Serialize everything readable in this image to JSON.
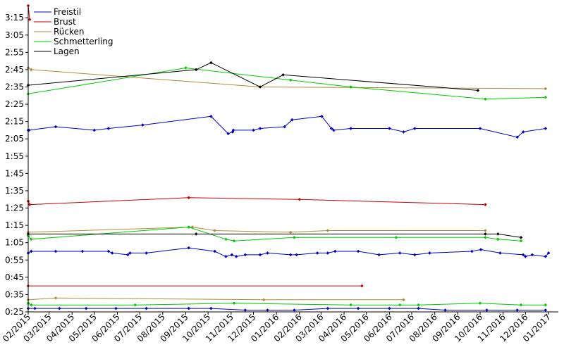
{
  "chart_data": {
    "type": "line",
    "title": "",
    "xlabel": "",
    "ylabel": "",
    "grid": false,
    "legend_position": "top-left",
    "x_ticks": [
      "02/2015",
      "03/2015",
      "04/2015",
      "05/2015",
      "06/2015",
      "07/2015",
      "08/2015",
      "09/2015",
      "10/2015",
      "11/2015",
      "12/2015",
      "01/2016",
      "02/2016",
      "03/2016",
      "04/2016",
      "05/2016",
      "06/2016",
      "07/2016",
      "08/2016",
      "09/2016",
      "10/2016",
      "11/2016",
      "12/2016",
      "01/2017"
    ],
    "xlim": [
      "2015-02-01",
      "2017-01-01"
    ],
    "y_ticks": [
      "0:25",
      "0:35",
      "0:45",
      "0:55",
      "1:05",
      "1:15",
      "1:25",
      "1:35",
      "1:45",
      "1:55",
      "2:05",
      "2:15",
      "2:25",
      "2:35",
      "2:45",
      "2:55",
      "3:05",
      "3:15"
    ],
    "ylim": [
      "0:25",
      "3:22"
    ],
    "series": [
      {
        "name": "Freistil",
        "color": "#0000cc",
        "lines": [
          {
            "points": [
              [
                "2015-02-01",
                "2:10"
              ],
              [
                "2015-02-02",
                "2:10"
              ],
              [
                "2015-03-10",
                "2:12"
              ],
              [
                "2015-05-01",
                "2:10"
              ],
              [
                "2015-05-20",
                "2:11"
              ],
              [
                "2015-07-05",
                "2:13"
              ],
              [
                "2015-10-05",
                "2:18"
              ],
              [
                "2015-10-28",
                "2:08"
              ],
              [
                "2015-11-03",
                "2:09"
              ],
              [
                "2015-11-04",
                "2:10"
              ],
              [
                "2015-12-01",
                "2:10"
              ],
              [
                "2015-12-10",
                "2:11"
              ],
              [
                "2016-01-12",
                "2:12"
              ],
              [
                "2016-01-22",
                "2:16"
              ],
              [
                "2016-03-02",
                "2:18"
              ],
              [
                "2016-03-15",
                "2:11"
              ],
              [
                "2016-03-18",
                "2:10"
              ],
              [
                "2016-04-10",
                "2:11"
              ],
              [
                "2016-06-01",
                "2:11"
              ],
              [
                "2016-06-20",
                "2:09"
              ],
              [
                "2016-07-05",
                "2:11"
              ],
              [
                "2016-10-01",
                "2:11"
              ],
              [
                "2016-11-20",
                "2:06"
              ],
              [
                "2016-11-28",
                "2:09"
              ],
              [
                "2016-12-28",
                "2:11"
              ]
            ]
          },
          {
            "points": [
              [
                "2015-02-01",
                "0:59"
              ],
              [
                "2015-02-05",
                "1:00"
              ],
              [
                "2015-03-10",
                "1:00"
              ],
              [
                "2015-04-15",
                "1:00"
              ],
              [
                "2015-05-20",
                "1:00"
              ],
              [
                "2015-05-25",
                "0:59"
              ],
              [
                "2015-06-15",
                "0:58"
              ],
              [
                "2015-06-18",
                "0:59"
              ],
              [
                "2015-07-10",
                "0:59"
              ],
              [
                "2015-09-05",
                "1:02"
              ],
              [
                "2015-10-10",
                "1:00"
              ],
              [
                "2015-10-25",
                "0:57"
              ],
              [
                "2015-11-02",
                "0:58"
              ],
              [
                "2015-11-08",
                "0:57"
              ],
              [
                "2015-11-20",
                "0:58"
              ],
              [
                "2015-12-10",
                "0:58"
              ],
              [
                "2015-12-20",
                "0:59"
              ],
              [
                "2016-01-20",
                "0:58"
              ],
              [
                "2016-01-28",
                "0:58"
              ],
              [
                "2016-02-25",
                "0:59"
              ],
              [
                "2016-03-10",
                "0:59"
              ],
              [
                "2016-03-20",
                "1:00"
              ],
              [
                "2016-04-20",
                "1:00"
              ],
              [
                "2016-05-18",
                "0:58"
              ],
              [
                "2016-06-15",
                "0:59"
              ],
              [
                "2016-07-05",
                "0:58"
              ],
              [
                "2016-07-25",
                "0:59"
              ],
              [
                "2016-09-20",
                "1:00"
              ],
              [
                "2016-10-02",
                "1:01"
              ],
              [
                "2016-10-28",
                "0:59"
              ],
              [
                "2016-11-28",
                "0:58"
              ],
              [
                "2016-12-01",
                "0:57"
              ],
              [
                "2016-12-10",
                "0:58"
              ],
              [
                "2016-12-28",
                "0:57"
              ],
              [
                "2017-01-01",
                "0:59"
              ]
            ]
          },
          {
            "points": [
              [
                "2015-02-01",
                "0:27"
              ],
              [
                "2015-02-10",
                "0:27"
              ],
              [
                "2015-03-15",
                "0:27"
              ],
              [
                "2015-04-20",
                "0:27"
              ],
              [
                "2015-05-30",
                "0:27"
              ],
              [
                "2015-07-10",
                "0:27"
              ],
              [
                "2015-09-05",
                "0:27"
              ],
              [
                "2015-10-05",
                "0:27"
              ],
              [
                "2015-11-20",
                "0:26"
              ],
              [
                "2015-12-20",
                "0:26"
              ],
              [
                "2016-01-25",
                "0:26"
              ],
              [
                "2016-03-10",
                "0:27"
              ],
              [
                "2016-04-20",
                "0:27"
              ],
              [
                "2016-06-01",
                "0:27"
              ],
              [
                "2016-07-10",
                "0:27"
              ],
              [
                "2016-08-15",
                "0:26"
              ],
              [
                "2016-10-10",
                "0:26"
              ],
              [
                "2016-11-20",
                "0:26"
              ],
              [
                "2016-12-28",
                "0:26"
              ]
            ]
          }
        ]
      },
      {
        "name": "Brust",
        "color": "#cc0000",
        "lines": [
          {
            "points": [
              [
                "2015-02-01",
                "3:22"
              ],
              [
                "2015-02-03",
                "3:14"
              ]
            ]
          },
          {
            "points": [
              [
                "2015-02-01",
                "1:29"
              ],
              [
                "2015-02-03",
                "1:27"
              ],
              [
                "2015-09-05",
                "1:31"
              ],
              [
                "2016-02-01",
                "1:30"
              ],
              [
                "2016-10-08",
                "1:27"
              ]
            ]
          },
          {
            "points": [
              [
                "2015-02-01",
                "0:40"
              ],
              [
                "2016-04-25",
                "0:40"
              ]
            ]
          }
        ]
      },
      {
        "name": "Rücken",
        "color": "#b08a3a",
        "lines": [
          {
            "points": [
              [
                "2015-02-01",
                "2:46"
              ],
              [
                "2015-02-05",
                "2:45"
              ],
              [
                "2015-12-10",
                "2:35"
              ],
              [
                "2016-12-28",
                "2:34"
              ]
            ]
          },
          {
            "points": [
              [
                "2015-02-01",
                "1:11"
              ],
              [
                "2015-09-10",
                "1:14"
              ],
              [
                "2015-10-10",
                "1:12"
              ],
              [
                "2016-01-20",
                "1:11"
              ],
              [
                "2016-03-10",
                "1:12"
              ],
              [
                "2016-10-08",
                "1:12"
              ]
            ]
          },
          {
            "points": [
              [
                "2015-02-01",
                "0:32"
              ],
              [
                "2015-03-10",
                "0:33"
              ],
              [
                "2015-12-15",
                "0:32"
              ],
              [
                "2016-06-20",
                "0:32"
              ]
            ]
          }
        ]
      },
      {
        "name": "Schmetterling",
        "color": "#00cc00",
        "lines": [
          {
            "points": [
              [
                "2015-02-01",
                "2:31"
              ],
              [
                "2015-09-01",
                "2:46"
              ],
              [
                "2016-01-20",
                "2:39"
              ],
              [
                "2016-04-10",
                "2:35"
              ],
              [
                "2016-10-08",
                "2:28"
              ],
              [
                "2016-12-28",
                "2:29"
              ]
            ]
          },
          {
            "points": [
              [
                "2015-02-01",
                "1:09"
              ],
              [
                "2015-02-05",
                "1:07"
              ],
              [
                "2015-09-05",
                "1:14"
              ],
              [
                "2015-10-25",
                "1:07"
              ],
              [
                "2015-11-05",
                "1:06"
              ],
              [
                "2016-01-25",
                "1:08"
              ],
              [
                "2016-06-10",
                "1:08"
              ],
              [
                "2016-10-08",
                "1:08"
              ],
              [
                "2016-10-25",
                "1:07"
              ],
              [
                "2016-11-25",
                "1:06"
              ]
            ]
          },
          {
            "points": [
              [
                "2015-02-01",
                "0:30"
              ],
              [
                "2015-02-05",
                "0:29"
              ],
              [
                "2015-06-25",
                "0:29"
              ],
              [
                "2015-11-05",
                "0:30"
              ],
              [
                "2016-04-10",
                "0:29"
              ],
              [
                "2016-06-15",
                "0:29"
              ],
              [
                "2016-07-10",
                "0:29"
              ],
              [
                "2016-10-01",
                "0:30"
              ],
              [
                "2016-11-25",
                "0:29"
              ],
              [
                "2016-12-28",
                "0:29"
              ]
            ]
          }
        ]
      },
      {
        "name": "Lagen",
        "color": "#000000",
        "lines": [
          {
            "points": [
              [
                "2015-02-01",
                "2:36"
              ],
              [
                "2015-09-15",
                "2:45"
              ],
              [
                "2015-10-05",
                "2:49"
              ],
              [
                "2015-12-10",
                "2:35"
              ],
              [
                "2016-01-10",
                "2:42"
              ],
              [
                "2016-09-28",
                "2:33"
              ]
            ]
          },
          {
            "points": [
              [
                "2015-02-01",
                "1:10"
              ],
              [
                "2015-09-15",
                "1:10"
              ],
              [
                "2016-10-08",
                "1:10"
              ],
              [
                "2016-10-25",
                "1:10"
              ],
              [
                "2016-11-25",
                "1:08"
              ]
            ]
          }
        ]
      }
    ]
  }
}
